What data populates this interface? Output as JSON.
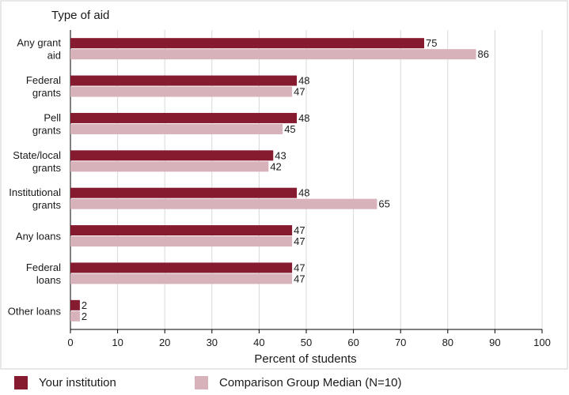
{
  "chart_data": {
    "type": "bar",
    "orientation": "horizontal",
    "y_axis_title": "Type of aid",
    "xlabel": "Percent of students",
    "xlim": [
      0,
      100
    ],
    "x_ticks": [
      0,
      10,
      20,
      30,
      40,
      50,
      60,
      70,
      80,
      90,
      100
    ],
    "grid": true,
    "legend_position": "bottom",
    "categories": [
      [
        "Any grant",
        "aid"
      ],
      [
        "Federal",
        "grants"
      ],
      [
        "Pell",
        "grants"
      ],
      [
        "State/local",
        "grants"
      ],
      [
        "Institutional",
        "grants"
      ],
      [
        "Any loans"
      ],
      [
        "Federal",
        "loans"
      ],
      [
        "Other loans"
      ]
    ],
    "series": [
      {
        "name": "Your institution",
        "color": "#861a2f",
        "values": [
          75,
          48,
          48,
          43,
          48,
          47,
          47,
          2
        ]
      },
      {
        "name": "Comparison Group Median (N=10)",
        "color": "#d8b2ba",
        "values": [
          86,
          47,
          45,
          42,
          65,
          47,
          47,
          2
        ]
      }
    ]
  }
}
